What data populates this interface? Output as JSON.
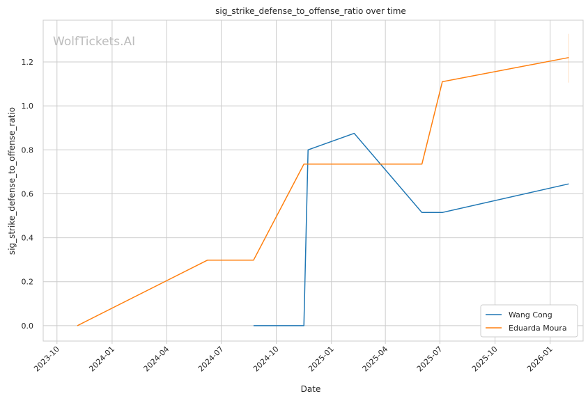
{
  "chart_data": {
    "type": "line",
    "title": "sig_strike_defense_to_offense_ratio over time",
    "xlabel": "Date",
    "ylabel": "sig_strike_defense_to_offense_ratio",
    "watermark": "WolfTickets.AI",
    "x_ticks": [
      "2023-10",
      "2024-01",
      "2024-04",
      "2024-07",
      "2024-10",
      "2025-01",
      "2025-04",
      "2025-07",
      "2025-10",
      "2026-01"
    ],
    "y_ticks": [
      "0.0",
      "0.2",
      "0.4",
      "0.6",
      "0.8",
      "1.0",
      "1.2"
    ],
    "xlim": [
      "2023-09-08",
      "2026-02-25"
    ],
    "ylim": [
      -0.07,
      1.39
    ],
    "grid": true,
    "legend_position": "bottom-right",
    "series": [
      {
        "name": "Wang Cong",
        "color": "#1f77b4",
        "x": [
          "2024-08-24",
          "2024-11-16",
          "2024-11-23",
          "2025-02-08",
          "2025-06-01",
          "2025-07-05",
          "2026-02-01"
        ],
        "y": [
          0.0,
          0.0,
          0.8,
          0.875,
          0.515,
          0.515,
          0.645
        ]
      },
      {
        "name": "Eduarda Moura",
        "color": "#ff7f0e",
        "x": [
          "2023-11-04",
          "2024-06-08",
          "2024-08-24",
          "2024-11-16",
          "2025-06-01",
          "2025-07-05",
          "2026-02-01"
        ],
        "y": [
          0.0,
          0.298,
          0.298,
          0.735,
          0.735,
          1.11,
          1.22
        ]
      }
    ]
  }
}
